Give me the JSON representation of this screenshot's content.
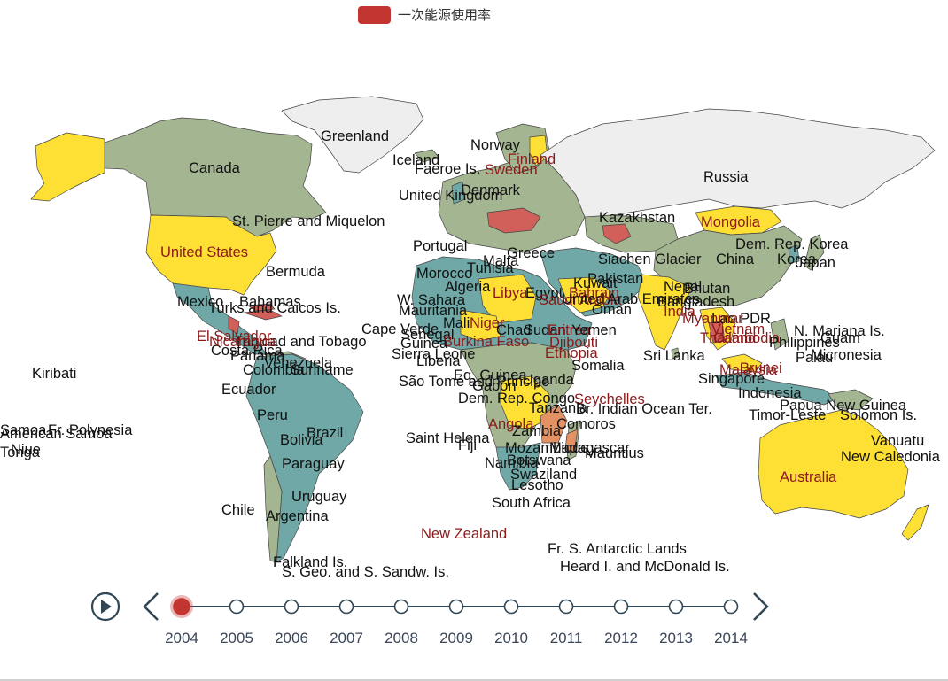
{
  "legend": {
    "label": "一次能源使用率",
    "color": "#c23531"
  },
  "colors": {
    "ocean": "#ffffff",
    "nodata": "#eeeeee",
    "teal": "#6fa8a6",
    "sage": "#a4b591",
    "yellow": "#fde033",
    "orange": "#e49163",
    "red": "#d2605a",
    "border": "#444444"
  },
  "labels": {
    "greenland": "Greenland",
    "canada": "Canada",
    "iceland": "Iceland",
    "faeroe": "Faeroe Is.",
    "norway": "Norway",
    "finland": "Finland",
    "sweden": "Sweden",
    "russia": "Russia",
    "united_kingdom": "United Kingdom",
    "denmark": "Denmark",
    "st_pierre": "St. Pierre and Miquelon",
    "united_states": "United States",
    "portugal": "Portugal",
    "kazakhstan": "Kazakhstan",
    "mongolia": "Mongolia",
    "dem_rep_korea": "Dem. Rep. Korea",
    "korea": "Korea",
    "japan": "Japan",
    "china": "China",
    "bermuda": "Bermuda",
    "morocco": "Morocco",
    "tunisia": "Tunisia",
    "malta": "Malta",
    "greece": "Greece",
    "siachen": "Siachen Glacier",
    "pakistan": "Pakistan",
    "nepal": "Nepal",
    "bhutan": "Bhutan",
    "bangladesh": "Bangladesh",
    "algeria": "Algeria",
    "libya": "Libya",
    "egypt": "Egypt",
    "bahrain": "Bahrain",
    "kuwait": "Kuwait",
    "saudi_arabia": "Saudi Arabia",
    "uae": "United Arab Emirates",
    "oman": "Oman",
    "india": "India",
    "lao": "Lao PDR",
    "myanmar": "Myanmar",
    "vietnam": "Vietnam",
    "thailand": "Thailand",
    "cambodia": "Cambodia",
    "philippines": "Philippines",
    "n_mariana": "N. Mariana Is.",
    "guam": "Guam",
    "palau": "Palau",
    "micronesia": "Micronesia",
    "mexico": "Mexico",
    "bahamas": "Bahamas",
    "turks": "Turks and Caicos Is.",
    "w_sahara": "W. Sahara",
    "mauritania": "Mauritania",
    "mali": "Mali",
    "niger": "Niger",
    "chad": "Chad",
    "sudan": "Sudan",
    "eritrea": "Eritrea",
    "yemen": "Yemen",
    "djibouti": "Djibouti",
    "ethiopia": "Ethiopia",
    "somalia": "Somalia",
    "cape_verde": "Cape Verde",
    "senegal": "Senegal",
    "burkina": "Burkina Faso",
    "guinea": "Guinea",
    "sierra_leone": "Sierra Leone",
    "liberia": "Liberia",
    "trinidad": "Trinidad and Tobago",
    "costa_rica": "Costa Rica",
    "panama": "Panama",
    "el_salvador": "El Salvador",
    "nicaragua": "Nicaragua",
    "venezuela": "Venezuela",
    "colombia": "Colombia",
    "suriname": "Suriname",
    "ecuador": "Ecuador",
    "sri_lanka": "Sri Lanka",
    "malaysia": "Malaysia",
    "brunei": "Brunei",
    "singapore": "Singapore",
    "indonesia": "Indonesia",
    "kiribati": "Kiribati",
    "sao_tome": "São Tomé and Principe",
    "eq_guinea": "Eq. Guinea",
    "gabon": "Gabon",
    "uganda": "Uganda",
    "dem_rep_congo": "Dem. Rep. Congo",
    "seychelles": "Seychelles",
    "tanzania": "Tanzania",
    "br_indian_ocean": "Br. Indian Ocean Ter.",
    "papua": "Papua New Guinea",
    "timor": "Timor-Leste",
    "solomon": "Solomon Is.",
    "peru": "Peru",
    "brazil": "Brazil",
    "bolivia": "Bolivia",
    "saint_helena": "Saint Helena",
    "angola": "Angola",
    "comoros": "Comoros",
    "zambia": "Zambia",
    "mozambique": "Mozambique",
    "madagascar": "Madagascar",
    "mauritius": "Mauritius",
    "namibia": "Namibia",
    "botswana": "Botswana",
    "swaziland": "Swaziland",
    "lesotho": "Lesotho",
    "south_africa": "South Africa",
    "samoa": "Samoa",
    "fr_polynesia": "Fr. Polynesia",
    "american_samoa": "American Samoa",
    "niue": "Niue",
    "tonga": "Tonga",
    "fiji": "Fiji",
    "vanuatu": "Vanuatu",
    "new_caledonia": "New Caledonia",
    "paraguay": "Paraguay",
    "uruguay": "Uruguay",
    "chile": "Chile",
    "argentina": "Argentina",
    "australia": "Australia",
    "new_zealand": "New Zealand",
    "fr_s_antarctic": "Fr. S. Antarctic Lands",
    "heard": "Heard I. and McDonald Is.",
    "falkland": "Falkland Is.",
    "s_georgia": "S. Geo. and S. Sandw. Is."
  },
  "timeline": {
    "years": [
      "2004",
      "2005",
      "2006",
      "2007",
      "2008",
      "2009",
      "2010",
      "2011",
      "2012",
      "2013",
      "2014"
    ],
    "current": "2004",
    "line_color": "#304654",
    "active_color": "#c23531"
  }
}
